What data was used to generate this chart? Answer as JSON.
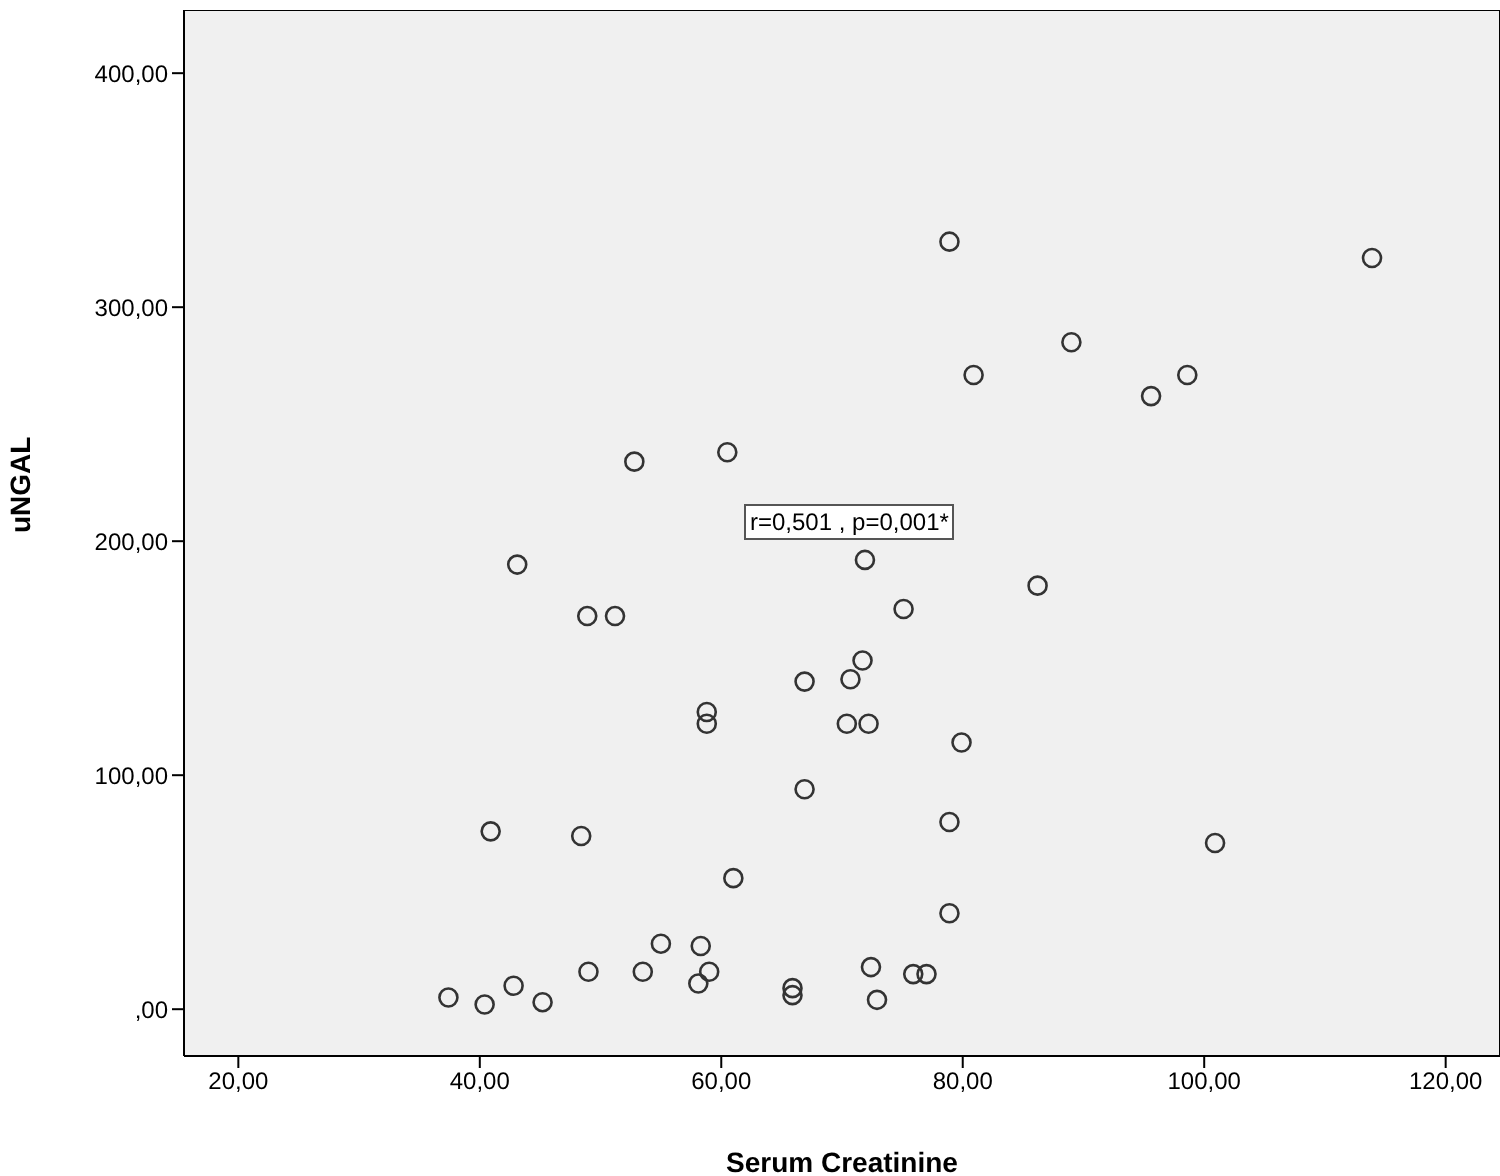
{
  "chart_data": {
    "type": "scatter",
    "xlabel": "Serum Creatinine",
    "ylabel": "uNGAL",
    "annotations": [
      "r=0,501 , p=0,001*"
    ],
    "marker": "circle",
    "xlim": [
      15.5,
      124.5
    ],
    "ylim": [
      -20,
      427
    ],
    "xticks": [
      {
        "value": 20,
        "label": "20,00"
      },
      {
        "value": 40,
        "label": "40,00"
      },
      {
        "value": 60,
        "label": "60,00"
      },
      {
        "value": 80,
        "label": "80,00"
      },
      {
        "value": 100,
        "label": "100,00"
      },
      {
        "value": 120,
        "label": "120,00"
      }
    ],
    "yticks": [
      {
        "value": 0,
        "label": ",00"
      },
      {
        "value": 100,
        "label": "100,00"
      },
      {
        "value": 200,
        "label": "200,00"
      },
      {
        "value": 300,
        "label": "300,00"
      },
      {
        "value": 400,
        "label": "400,00"
      }
    ],
    "series": [
      {
        "color": "#333333",
        "x": [
          78.9,
          113.9,
          89.0,
          80.9,
          98.6,
          95.6,
          60.5,
          52.8,
          71.9,
          43.1,
          86.2,
          75.1,
          48.9,
          51.2,
          71.7,
          70.7,
          66.9,
          58.8,
          58.8,
          70.4,
          72.2,
          79.9,
          66.9,
          40.9,
          48.4,
          100.9,
          78.9,
          61.0,
          78.9,
          55.0,
          58.3,
          37.4,
          40.4,
          42.8,
          45.2,
          49.0,
          53.5,
          59.0,
          58.1,
          65.9,
          65.9,
          72.4,
          72.9,
          75.9,
          77.0
        ],
        "values": [
          328,
          321,
          285,
          271,
          271,
          262,
          238,
          234,
          192,
          190,
          181,
          171,
          168,
          168,
          149,
          141,
          140,
          127,
          122,
          122,
          122,
          114,
          94,
          76,
          74,
          71,
          80,
          56,
          41,
          28,
          27,
          5,
          2,
          10,
          3,
          16,
          16,
          16,
          11,
          9,
          6,
          18,
          4,
          15,
          15
        ]
      }
    ]
  }
}
